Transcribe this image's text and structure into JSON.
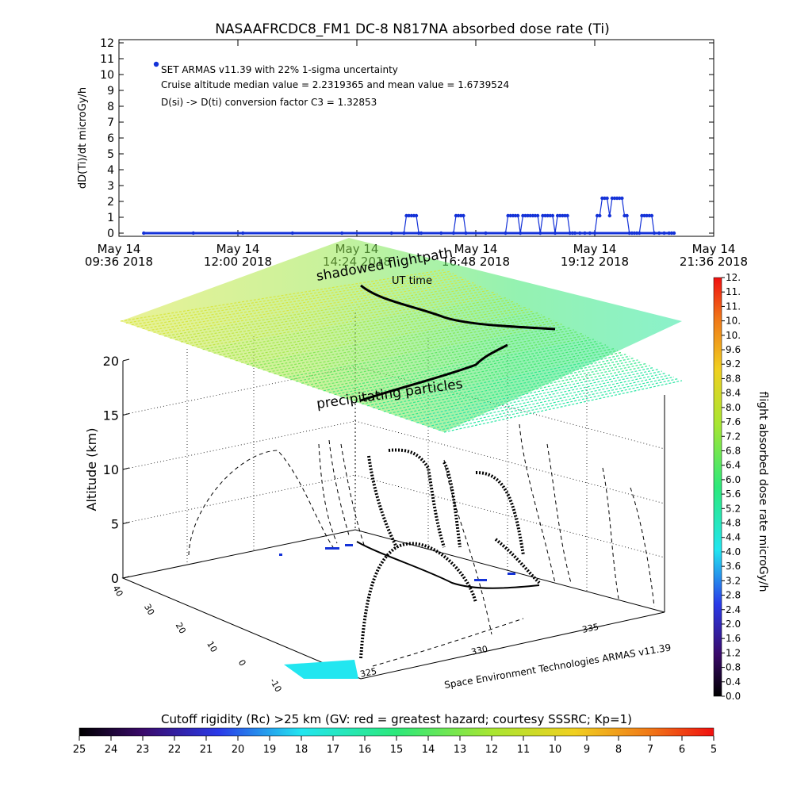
{
  "colors": {
    "series_marker": "#1432d8",
    "axis": "#000000",
    "grid": "#000000",
    "ground_patch": "#22e6f0",
    "flight_track": "#000000"
  },
  "chart_data": [
    {
      "type": "line",
      "title": "NASAAFRCDC8_FM1 DC-8   N817NA absorbed dose rate (Ti)",
      "xlabel": "",
      "ylabel": "dD(Ti)/dt microGy/h",
      "ylim": [
        0,
        12
      ],
      "yticks": [
        "0",
        "1",
        "2",
        "3",
        "4",
        "5",
        "6",
        "7",
        "8",
        "9",
        "10",
        "11",
        "12"
      ],
      "xticks": [
        {
          "date": "May 14",
          "time": "09:36 2018"
        },
        {
          "date": "May 14",
          "time": "12:00 2018"
        },
        {
          "date": "May 14",
          "time": "14:24 2018"
        },
        {
          "date": "May 14",
          "time": "16:48 2018"
        },
        {
          "date": "May 14",
          "time": "19:12 2018"
        },
        {
          "date": "May 14",
          "time": "21:36 2018"
        }
      ],
      "x_unit": "hours UT",
      "xlim": [
        9.6,
        21.6
      ],
      "legend_marker": "circle",
      "legend_placement": "top-left",
      "annotations": [
        "SET ARMAS v11.39 with 22% 1-sigma uncertainty",
        "Cruise altitude median value = 2.2319365 and mean value = 1.6739524",
        "D(si) -> D(ti) conversion factor C3 = 1.32853"
      ],
      "series": [
        {
          "x": [
            10.1,
            11.1,
            12.1,
            13.1,
            14.1,
            15.1,
            15.35,
            15.4,
            15.45,
            15.5,
            15.55,
            15.6,
            15.65,
            15.7,
            16.1,
            16.35,
            16.4,
            16.45,
            16.5,
            16.55,
            16.6,
            17.0,
            17.4,
            17.45,
            17.5,
            17.55,
            17.6,
            17.65,
            17.7,
            17.75,
            17.8,
            17.85,
            17.9,
            17.95,
            18.0,
            18.05,
            18.1,
            18.15,
            18.2,
            18.25,
            18.3,
            18.35,
            18.4,
            18.45,
            18.5,
            18.55,
            18.6,
            18.65,
            18.7,
            18.75,
            18.8,
            18.9,
            19.0,
            19.1,
            19.2,
            19.25,
            19.3,
            19.35,
            19.4,
            19.45,
            19.5,
            19.55,
            19.6,
            19.65,
            19.7,
            19.75,
            19.8,
            19.85,
            19.9,
            19.95,
            20.0,
            20.05,
            20.1,
            20.15,
            20.2,
            20.25,
            20.3,
            20.35,
            20.4,
            20.5,
            20.6,
            20.7,
            20.75,
            20.8
          ],
          "y": [
            0,
            0,
            0,
            0,
            0,
            0,
            0,
            1.1,
            1.1,
            1.1,
            1.1,
            1.1,
            0,
            0,
            0,
            0,
            1.1,
            1.1,
            1.1,
            1.1,
            0,
            0,
            0,
            1.1,
            1.1,
            1.1,
            1.1,
            1.1,
            0,
            1.1,
            1.1,
            1.1,
            1.1,
            1.1,
            1.1,
            1.1,
            0,
            1.1,
            1.1,
            1.1,
            1.1,
            1.1,
            0,
            1.1,
            1.1,
            1.1,
            1.1,
            1.1,
            0,
            0,
            0,
            0,
            0,
            0,
            0,
            1.1,
            1.1,
            2.2,
            2.2,
            2.2,
            1.1,
            2.2,
            2.2,
            2.2,
            2.2,
            2.2,
            1.1,
            1.1,
            0,
            0,
            0,
            0,
            0,
            1.1,
            1.1,
            1.1,
            1.1,
            1.1,
            0,
            0,
            0,
            0,
            0,
            0
          ]
        }
      ]
    },
    {
      "type": "scatter",
      "title": "",
      "zlabel": "Altitude (km)",
      "zticks": [
        "0",
        "5",
        "10",
        "15",
        "20"
      ],
      "zlim": [
        0,
        20
      ],
      "left_axis_ticks": [
        "-10",
        "0",
        "10",
        "20",
        "30",
        "40"
      ],
      "bottom_axis_ticks": [
        "325",
        "330",
        "335"
      ],
      "annotations": [
        "shadowed flightpath",
        "UT time",
        "precipitating particles"
      ],
      "credit": "Space Environment Technologies ARMAS v11.39",
      "colorbar": {
        "label": "flight absorbed dose rate microGy/h",
        "ticks": [
          "0.0",
          "0.4",
          "0.8",
          "1.2",
          "1.6",
          "2.0",
          "2.4",
          "2.8",
          "3.2",
          "3.6",
          "4.0",
          "4.4",
          "4.8",
          "5.2",
          "5.6",
          "6.0",
          "6.4",
          "6.8",
          "7.2",
          "7.6",
          "8.0",
          "8.4",
          "8.8",
          "9.2",
          "9.6",
          "10.",
          "10.",
          "11.",
          "11.",
          "12."
        ]
      },
      "cutoff_bar": {
        "label": "Cutoff rigidity (Rc) >25 km (GV: red = greatest hazard; courtesy SSSRC; Kp=1)",
        "ticks": [
          "25",
          "24",
          "23",
          "22",
          "21",
          "20",
          "19",
          "18",
          "17",
          "16",
          "15",
          "14",
          "13",
          "12",
          "11",
          "10",
          "9",
          "8",
          "7",
          "6",
          "5"
        ]
      }
    }
  ]
}
